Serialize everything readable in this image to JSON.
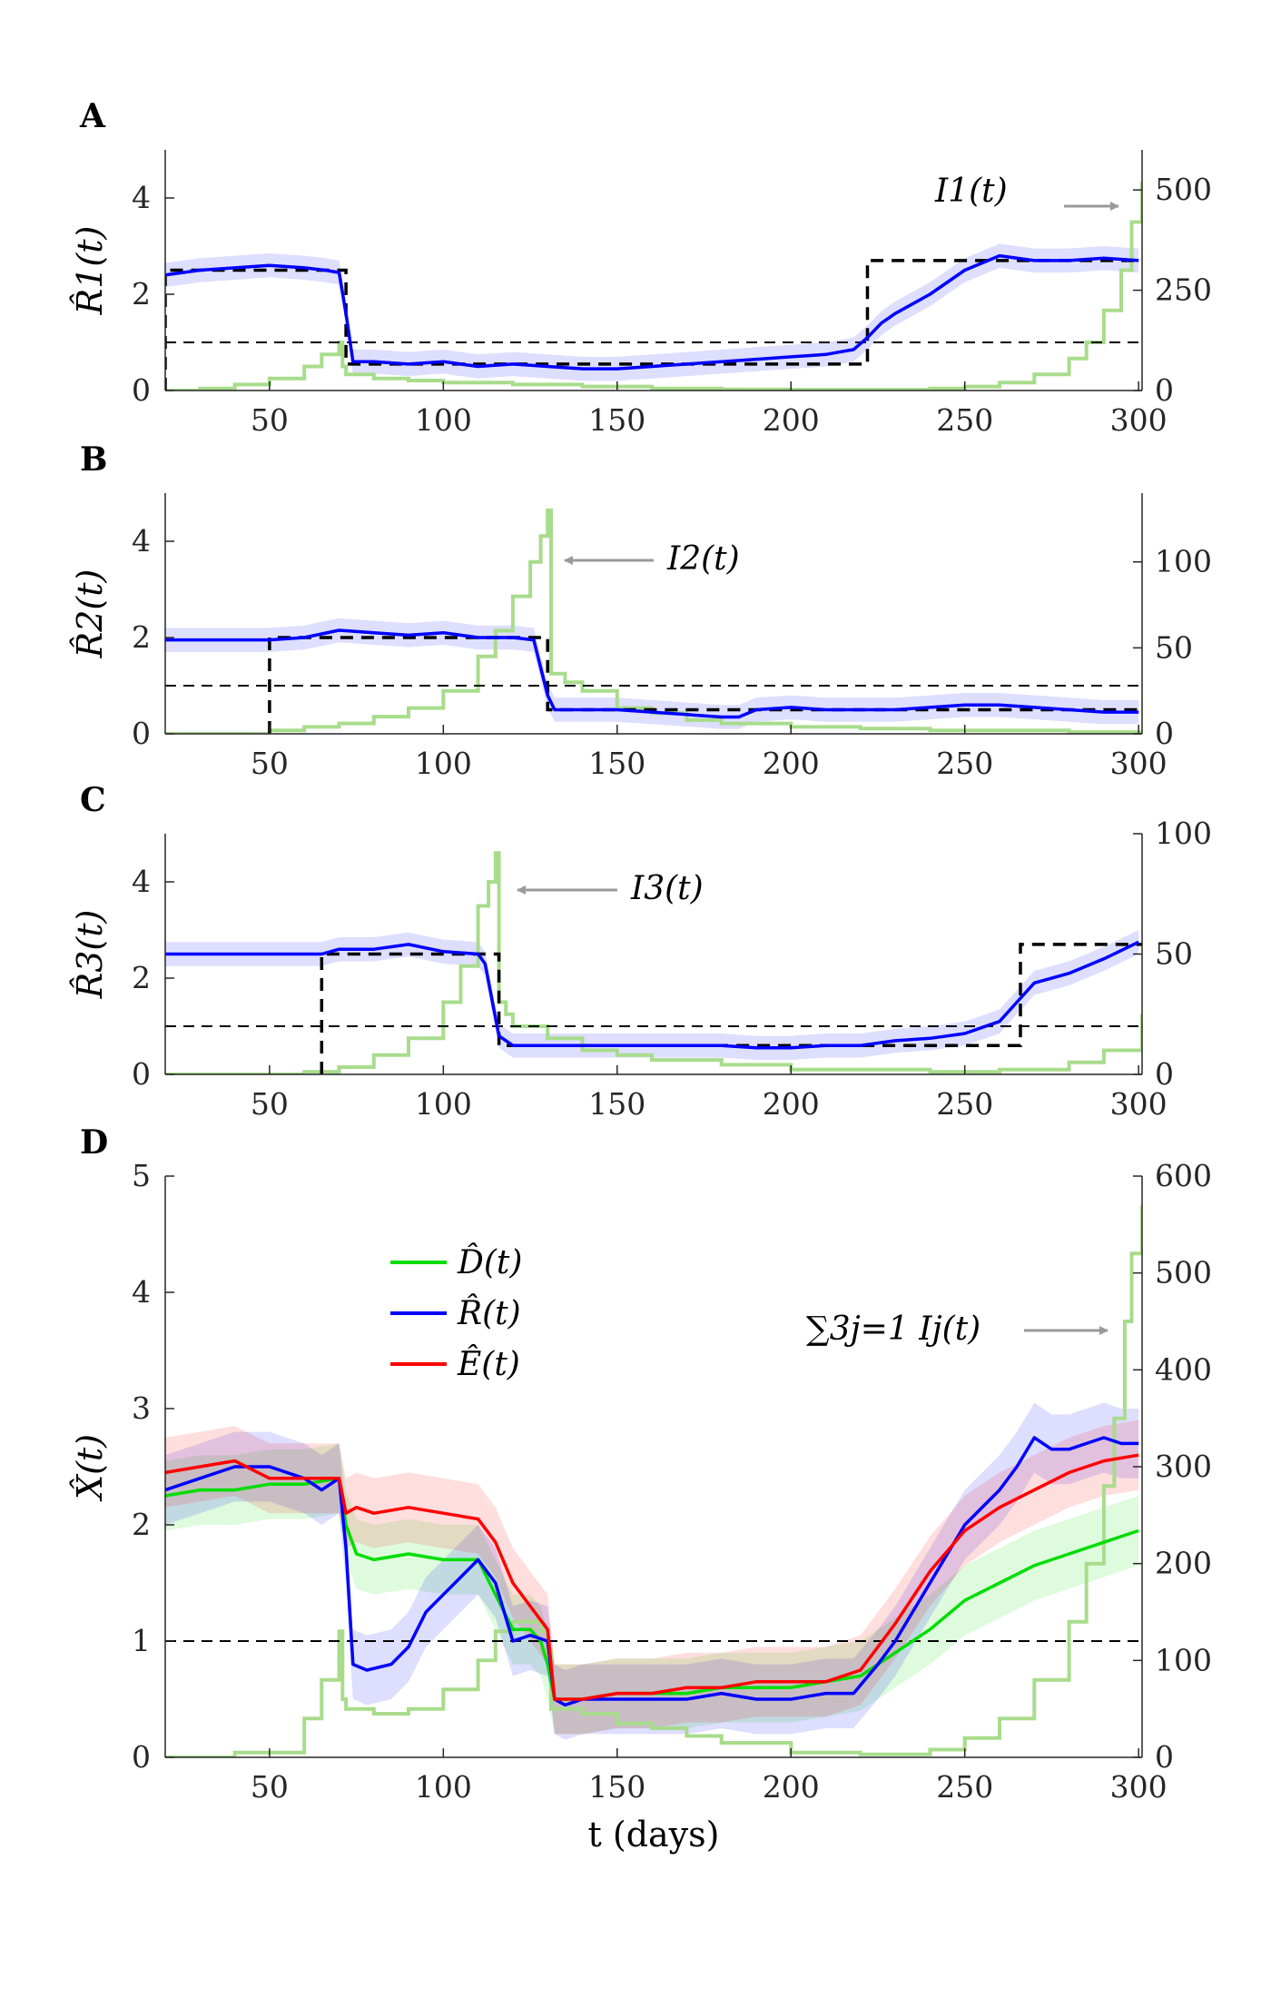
{
  "chart_data": [
    {
      "panel": "A",
      "type": "line",
      "ylabel": "R̂1(t)",
      "xlim": [
        20,
        301
      ],
      "ylim": [
        0,
        5
      ],
      "y2lim": [
        0,
        600
      ],
      "xticks": [
        "50",
        "100",
        "150",
        "200",
        "250",
        "300"
      ],
      "yticks": [
        "0",
        "2",
        "4"
      ],
      "y2ticks": [
        "0",
        "250",
        "500"
      ],
      "annotation": "I1(t)",
      "series": [
        {
          "role": "estimate",
          "color": "#0000ff",
          "x": [
            20,
            30,
            40,
            50,
            60,
            66,
            70,
            72,
            74,
            80,
            90,
            100,
            110,
            120,
            130,
            140,
            150,
            160,
            170,
            180,
            190,
            200,
            210,
            218,
            222,
            226,
            230,
            240,
            250,
            260,
            270,
            280,
            290,
            300
          ],
          "y": [
            2.4,
            2.5,
            2.55,
            2.6,
            2.55,
            2.5,
            2.45,
            1.6,
            0.6,
            0.6,
            0.55,
            0.6,
            0.5,
            0.55,
            0.5,
            0.45,
            0.45,
            0.5,
            0.55,
            0.6,
            0.65,
            0.7,
            0.75,
            0.85,
            1.1,
            1.4,
            1.6,
            2.0,
            2.5,
            2.8,
            2.7,
            2.7,
            2.75,
            2.7
          ]
        },
        {
          "role": "true",
          "color": "#000000",
          "x": [
            20,
            20,
            72,
            72,
            222,
            222,
            301
          ],
          "y": [
            0,
            2.5,
            2.5,
            0.55,
            0.55,
            2.7,
            2.7
          ]
        },
        {
          "role": "threshold",
          "color": "#000000",
          "x": [
            20,
            301
          ],
          "y": [
            1,
            1
          ]
        },
        {
          "role": "incidence",
          "color": "#a8dc8c",
          "axis": "right",
          "x": [
            20,
            30,
            40,
            50,
            60,
            65,
            70,
            71,
            72,
            80,
            90,
            100,
            120,
            140,
            160,
            180,
            200,
            220,
            240,
            250,
            260,
            270,
            280,
            285,
            290,
            295,
            298,
            301
          ],
          "y": [
            0,
            5,
            15,
            30,
            60,
            90,
            120,
            60,
            40,
            30,
            25,
            20,
            15,
            10,
            5,
            3,
            2,
            2,
            5,
            10,
            20,
            40,
            80,
            120,
            200,
            300,
            420,
            520
          ]
        }
      ]
    },
    {
      "panel": "B",
      "type": "line",
      "ylabel": "R̂2(t)",
      "xlim": [
        20,
        301
      ],
      "ylim": [
        0,
        5
      ],
      "y2lim": [
        0,
        140
      ],
      "xticks": [
        "50",
        "100",
        "150",
        "200",
        "250",
        "300"
      ],
      "yticks": [
        "0",
        "2",
        "4"
      ],
      "y2ticks": [
        "0",
        "50",
        "100"
      ],
      "annotation": "I2(t)",
      "series": [
        {
          "role": "estimate",
          "color": "#0000ff",
          "x": [
            20,
            30,
            40,
            50,
            60,
            70,
            80,
            90,
            100,
            110,
            120,
            126,
            130,
            132,
            140,
            150,
            160,
            170,
            180,
            185,
            190,
            200,
            210,
            220,
            230,
            240,
            250,
            260,
            270,
            280,
            290,
            300
          ],
          "y": [
            1.95,
            1.95,
            1.95,
            1.95,
            2.0,
            2.15,
            2.1,
            2.05,
            2.1,
            2.0,
            2.0,
            1.95,
            0.8,
            0.5,
            0.5,
            0.5,
            0.45,
            0.4,
            0.35,
            0.35,
            0.5,
            0.55,
            0.5,
            0.5,
            0.5,
            0.55,
            0.6,
            0.6,
            0.55,
            0.5,
            0.45,
            0.45
          ]
        },
        {
          "role": "true",
          "color": "#000000",
          "x": [
            50,
            50,
            130,
            130,
            301
          ],
          "y": [
            0,
            2.0,
            2.0,
            0.5,
            0.5
          ]
        },
        {
          "role": "threshold",
          "color": "#000000",
          "x": [
            20,
            301
          ],
          "y": [
            1,
            1
          ]
        },
        {
          "role": "incidence",
          "color": "#a8dc8c",
          "axis": "right",
          "x": [
            20,
            50,
            60,
            70,
            80,
            90,
            100,
            110,
            115,
            120,
            125,
            128,
            130,
            131,
            135,
            140,
            150,
            160,
            170,
            180,
            200,
            220,
            240,
            260,
            280,
            301
          ],
          "y": [
            0,
            2,
            4,
            6,
            10,
            15,
            25,
            45,
            60,
            80,
            100,
            115,
            130,
            35,
            30,
            25,
            15,
            12,
            8,
            6,
            4,
            3,
            2,
            2,
            1,
            1
          ]
        }
      ]
    },
    {
      "panel": "C",
      "type": "line",
      "ylabel": "R̂3(t)",
      "xlim": [
        20,
        301
      ],
      "ylim": [
        0,
        5
      ],
      "y2lim": [
        0,
        100
      ],
      "xticks": [
        "50",
        "100",
        "150",
        "200",
        "250",
        "300"
      ],
      "yticks": [
        "0",
        "2",
        "4"
      ],
      "y2ticks": [
        "0",
        "50",
        "100"
      ],
      "annotation": "I3(t)",
      "series": [
        {
          "role": "estimate",
          "color": "#0000ff",
          "x": [
            20,
            30,
            40,
            50,
            60,
            65,
            70,
            80,
            90,
            100,
            110,
            112,
            116,
            120,
            130,
            140,
            150,
            160,
            170,
            180,
            190,
            200,
            210,
            220,
            230,
            240,
            250,
            260,
            265,
            270,
            280,
            290,
            300
          ],
          "y": [
            2.5,
            2.5,
            2.5,
            2.5,
            2.5,
            2.5,
            2.6,
            2.6,
            2.7,
            2.55,
            2.5,
            2.3,
            0.8,
            0.6,
            0.6,
            0.6,
            0.6,
            0.6,
            0.6,
            0.6,
            0.55,
            0.55,
            0.6,
            0.6,
            0.7,
            0.75,
            0.85,
            1.1,
            1.5,
            1.9,
            2.1,
            2.4,
            2.75
          ]
        },
        {
          "role": "true",
          "color": "#000000",
          "x": [
            65,
            65,
            116,
            116,
            266,
            266,
            301
          ],
          "y": [
            0,
            2.5,
            2.5,
            0.6,
            0.6,
            2.7,
            2.7
          ]
        },
        {
          "role": "threshold",
          "color": "#000000",
          "x": [
            20,
            301
          ],
          "y": [
            1,
            1
          ]
        },
        {
          "role": "incidence",
          "color": "#a8dc8c",
          "axis": "right",
          "x": [
            20,
            60,
            70,
            80,
            90,
            100,
            105,
            110,
            113,
            115,
            116,
            118,
            120,
            130,
            140,
            150,
            160,
            180,
            200,
            220,
            240,
            260,
            280,
            290,
            301
          ],
          "y": [
            0,
            1,
            3,
            8,
            15,
            30,
            45,
            70,
            80,
            92,
            30,
            25,
            20,
            15,
            10,
            8,
            6,
            4,
            2,
            2,
            1,
            2,
            5,
            10,
            25
          ]
        }
      ]
    },
    {
      "panel": "D",
      "type": "line",
      "ylabel": "X̂(t)",
      "xlabel": "t (days)",
      "xlim": [
        20,
        301
      ],
      "ylim": [
        0,
        5
      ],
      "y2lim": [
        0,
        600
      ],
      "xticks": [
        "50",
        "100",
        "150",
        "200",
        "250",
        "300"
      ],
      "yticks": [
        "0",
        "1",
        "2",
        "3",
        "4",
        "5"
      ],
      "y2ticks": [
        "0",
        "100",
        "200",
        "300",
        "400",
        "500",
        "600"
      ],
      "annotation": "∑3j=1 Ij(t)",
      "legend": [
        "D̂(t)",
        "R̂(t)",
        "Ê(t)"
      ],
      "series": [
        {
          "name": "D̂(t)",
          "color": "#00dd00",
          "x": [
            20,
            30,
            40,
            50,
            60,
            70,
            72,
            75,
            80,
            90,
            100,
            110,
            120,
            125,
            128,
            130,
            132,
            140,
            150,
            160,
            170,
            180,
            190,
            200,
            210,
            220,
            230,
            240,
            250,
            260,
            270,
            280,
            290,
            300
          ],
          "y": [
            2.25,
            2.3,
            2.3,
            2.35,
            2.35,
            2.4,
            2.0,
            1.75,
            1.7,
            1.75,
            1.7,
            1.7,
            1.1,
            1.1,
            1.0,
            0.8,
            0.5,
            0.5,
            0.55,
            0.55,
            0.55,
            0.6,
            0.6,
            0.6,
            0.65,
            0.7,
            0.9,
            1.1,
            1.35,
            1.5,
            1.65,
            1.75,
            1.85,
            1.95
          ]
        },
        {
          "name": "R̂(t)",
          "color": "#0000ff",
          "x": [
            20,
            30,
            40,
            50,
            60,
            65,
            70,
            72,
            74,
            78,
            85,
            90,
            95,
            100,
            105,
            110,
            115,
            120,
            125,
            130,
            132,
            135,
            140,
            150,
            160,
            170,
            180,
            190,
            200,
            210,
            218,
            225,
            230,
            240,
            250,
            260,
            265,
            270,
            275,
            280,
            285,
            290,
            295,
            300
          ],
          "y": [
            2.3,
            2.4,
            2.5,
            2.5,
            2.4,
            2.3,
            2.4,
            1.8,
            0.8,
            0.75,
            0.8,
            0.95,
            1.25,
            1.4,
            1.55,
            1.7,
            1.5,
            1.0,
            1.05,
            1.0,
            0.5,
            0.45,
            0.5,
            0.5,
            0.5,
            0.5,
            0.55,
            0.5,
            0.5,
            0.55,
            0.55,
            0.8,
            1.0,
            1.5,
            2.0,
            2.3,
            2.5,
            2.75,
            2.65,
            2.65,
            2.7,
            2.75,
            2.7,
            2.7
          ]
        },
        {
          "name": "Ê(t)",
          "color": "#ff0000",
          "x": [
            20,
            30,
            40,
            50,
            60,
            70,
            72,
            75,
            80,
            90,
            100,
            110,
            115,
            120,
            125,
            130,
            132,
            140,
            150,
            160,
            170,
            180,
            190,
            200,
            210,
            220,
            225,
            230,
            240,
            250,
            260,
            270,
            280,
            290,
            300
          ],
          "y": [
            2.45,
            2.5,
            2.55,
            2.4,
            2.4,
            2.4,
            2.1,
            2.15,
            2.1,
            2.15,
            2.1,
            2.05,
            1.85,
            1.5,
            1.3,
            1.1,
            0.5,
            0.5,
            0.55,
            0.55,
            0.6,
            0.6,
            0.65,
            0.65,
            0.65,
            0.75,
            0.95,
            1.15,
            1.6,
            1.95,
            2.15,
            2.3,
            2.45,
            2.55,
            2.6
          ]
        },
        {
          "role": "threshold",
          "color": "#000000",
          "x": [
            20,
            301
          ],
          "y": [
            1,
            1
          ]
        },
        {
          "role": "incidence",
          "color": "#a8dc8c",
          "axis": "right",
          "x": [
            20,
            40,
            60,
            65,
            70,
            71,
            72,
            80,
            90,
            100,
            110,
            115,
            120,
            125,
            128,
            130,
            131,
            135,
            140,
            150,
            160,
            170,
            180,
            200,
            220,
            240,
            250,
            260,
            270,
            280,
            285,
            290,
            293,
            296,
            298,
            301
          ],
          "y": [
            0,
            5,
            40,
            80,
            130,
            60,
            50,
            45,
            50,
            70,
            100,
            130,
            140,
            140,
            130,
            110,
            50,
            50,
            45,
            35,
            30,
            22,
            15,
            5,
            3,
            8,
            20,
            40,
            80,
            140,
            200,
            280,
            350,
            450,
            520,
            570
          ]
        }
      ]
    }
  ]
}
